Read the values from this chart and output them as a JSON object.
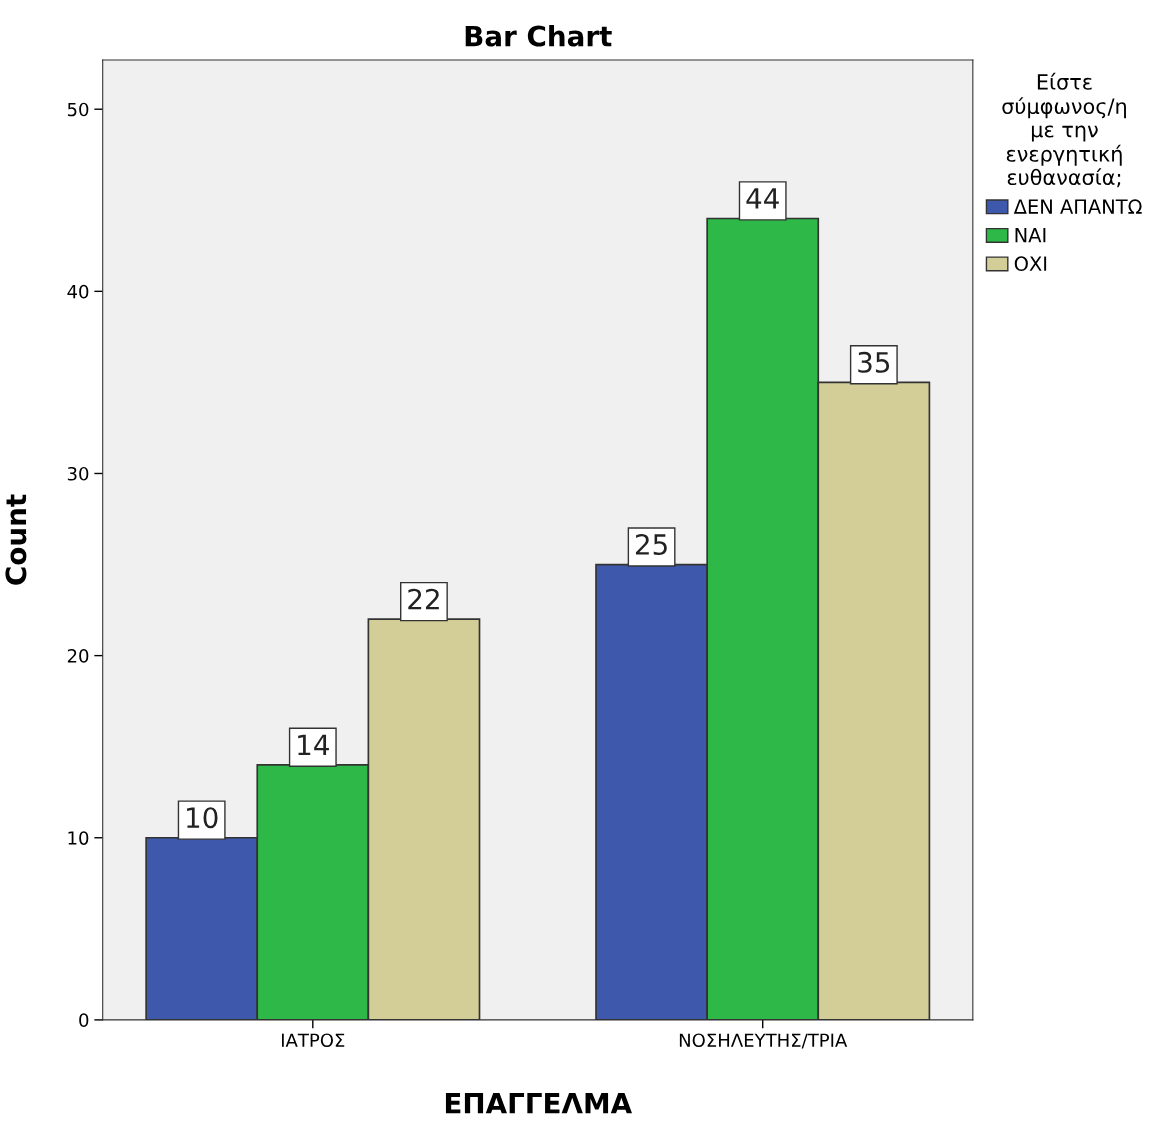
{
  "chart_data": {
    "type": "bar",
    "title": "Bar Chart",
    "xlabel": "ΕΠΑΓΓΕΛΜΑ",
    "ylabel": "Count",
    "legend_title": "Είστε\nσύμφωνος/η\nμε την\nενεργητική\nευθανασία;",
    "categories": [
      "ΙΑΤΡΟΣ",
      "ΝΟΣΗΛΕΥΤΗΣ/ΤΡΙΑ"
    ],
    "series": [
      {
        "name": "ΔΕΝ ΑΠΑΝΤΩ",
        "color": "#3e58ac",
        "values": [
          10,
          25
        ]
      },
      {
        "name": "ΝΑΙ",
        "color": "#2eb848",
        "values": [
          14,
          44
        ]
      },
      {
        "name": "ΟΧΙ",
        "color": "#d3ce97",
        "values": [
          22,
          35
        ]
      }
    ],
    "ylim": [
      0,
      52.7
    ],
    "yticks": [
      0,
      10,
      20,
      30,
      40,
      50
    ],
    "grid": false,
    "legend": "top right",
    "data_labels": true
  }
}
